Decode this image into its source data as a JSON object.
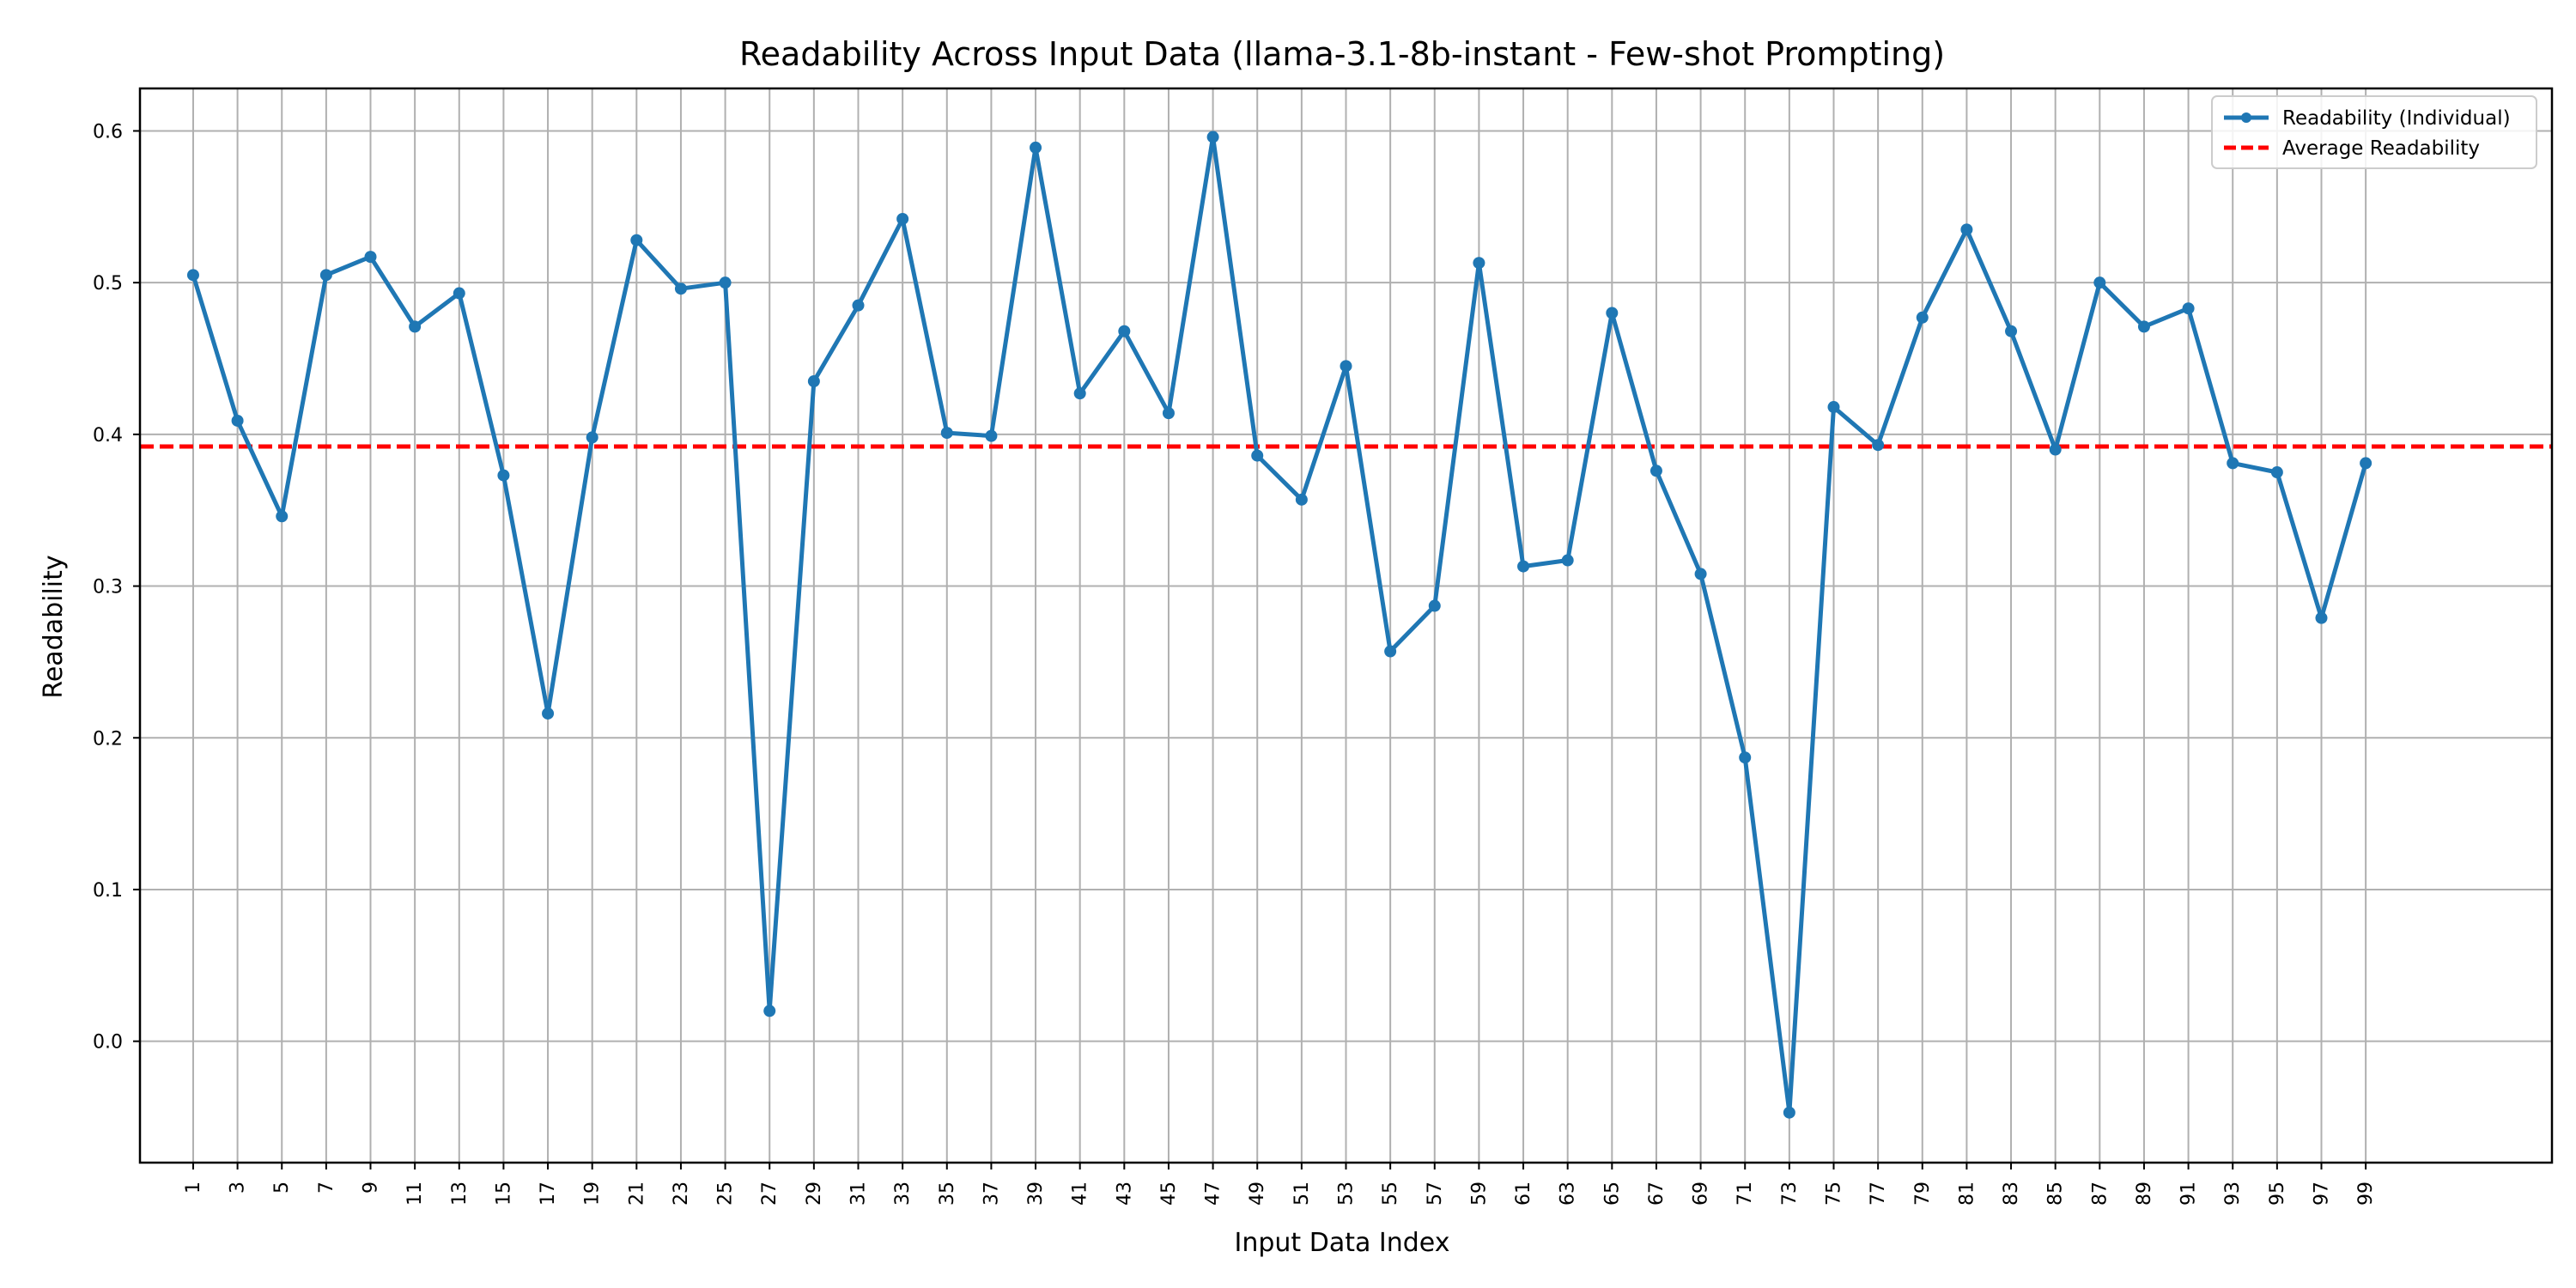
{
  "chart_data": {
    "type": "line",
    "title": "Readability Across Input Data (llama-3.1-8b-instant - Few-shot Prompting)",
    "xlabel": "Input Data Index",
    "ylabel": "Readability",
    "xlim": [
      -1.4,
      107.4
    ],
    "ylim": [
      -0.08,
      0.628
    ],
    "x_ticks": [
      1,
      3,
      5,
      7,
      9,
      11,
      13,
      15,
      17,
      19,
      21,
      23,
      25,
      27,
      29,
      31,
      33,
      35,
      37,
      39,
      41,
      43,
      45,
      47,
      49,
      51,
      53,
      55,
      57,
      59,
      61,
      63,
      65,
      67,
      69,
      71,
      73,
      75,
      77,
      79,
      81,
      83,
      85,
      87,
      89,
      91,
      93,
      95,
      97,
      99
    ],
    "y_ticks": [
      0.0,
      0.1,
      0.2,
      0.3,
      0.4,
      0.5,
      0.6
    ],
    "y_tick_labels": [
      "0.0",
      "0.1",
      "0.2",
      "0.3",
      "0.4",
      "0.5",
      "0.6"
    ],
    "grid": true,
    "legend_position": "top-right",
    "series": [
      {
        "name": "Readability (Individual)",
        "color": "#1f77b4",
        "style": "solid-with-markers",
        "x": [
          1,
          3,
          5,
          7,
          9,
          11,
          13,
          15,
          17,
          19,
          21,
          23,
          25,
          27,
          29,
          31,
          33,
          35,
          37,
          39,
          41,
          43,
          45,
          47,
          49,
          51,
          53,
          55,
          57,
          59,
          61,
          63,
          65,
          67,
          69,
          71,
          73,
          75,
          77,
          79,
          81,
          83,
          85,
          87,
          89,
          91,
          93,
          95,
          97,
          99
        ],
        "values": [
          0.505,
          0.409,
          0.346,
          0.505,
          0.517,
          0.471,
          0.493,
          0.373,
          0.216,
          0.398,
          0.528,
          0.496,
          0.5,
          0.02,
          0.435,
          0.485,
          0.542,
          0.401,
          0.399,
          0.589,
          0.427,
          0.468,
          0.414,
          0.596,
          0.386,
          0.357,
          0.445,
          0.257,
          0.287,
          0.513,
          0.313,
          0.317,
          0.48,
          0.376,
          0.308,
          0.187,
          -0.047,
          0.418,
          0.393,
          0.477,
          0.535,
          0.468,
          0.39,
          0.5,
          0.471,
          0.483,
          0.381,
          0.375,
          0.279,
          0.381
        ]
      },
      {
        "name": "Average Readability",
        "color": "#ff0000",
        "style": "dashed",
        "values": [
          0.392
        ]
      }
    ]
  }
}
